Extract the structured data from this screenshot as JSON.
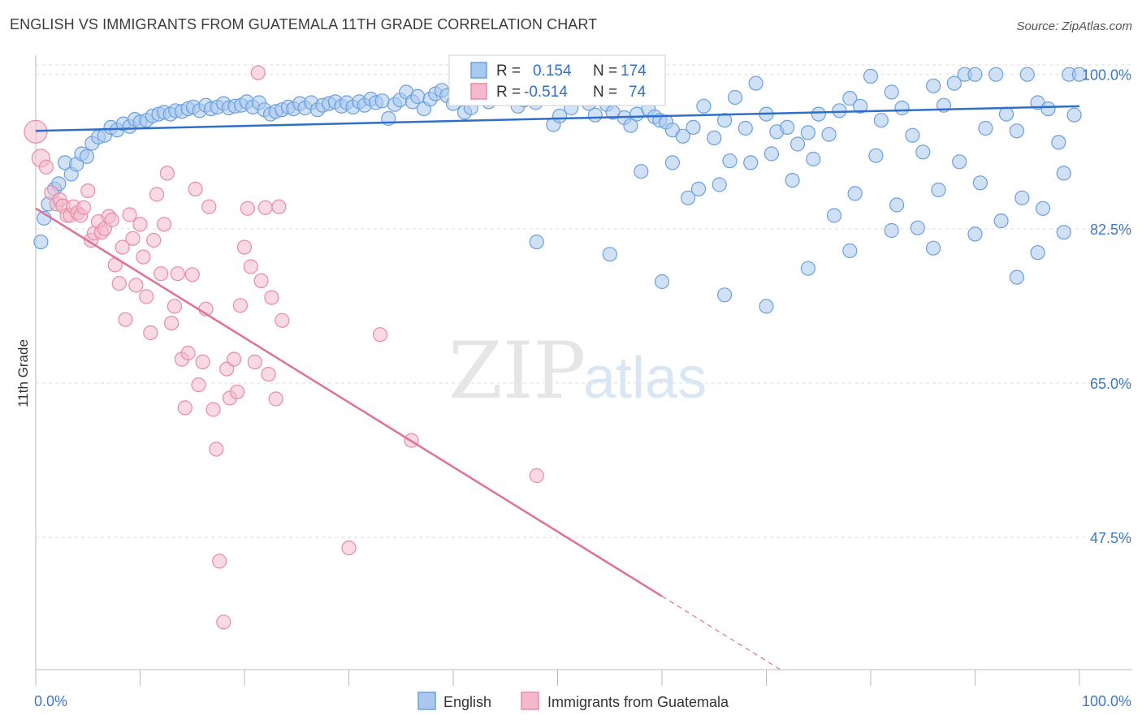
{
  "title": "ENGLISH VS IMMIGRANTS FROM GUATEMALA 11TH GRADE CORRELATION CHART",
  "source": "Source: ZipAtlas.com",
  "watermark": {
    "part1": "ZIP",
    "part2": "atlas"
  },
  "colors": {
    "blue": "#6a9fe0",
    "blue_fill": "#a9c8ef",
    "blue_line": "#2f6fc9",
    "pink": "#e88aa8",
    "pink_fill": "#f4b9cb",
    "pink_line": "#e0709a",
    "label": "#3d78c7",
    "grid": "#dddddd"
  },
  "stats_box": {
    "rows": [
      {
        "r_label": "R =",
        "r_value": "0.154",
        "n_label": "N =",
        "n_value": "174"
      },
      {
        "r_label": "R =",
        "r_value": "-0.514",
        "n_label": "N =",
        "n_value": "74"
      }
    ]
  },
  "legend": {
    "items": [
      "English",
      "Immigrants from Guatemala"
    ]
  },
  "chart_data": {
    "type": "scatter",
    "title": "ENGLISH VS IMMIGRANTS FROM GUATEMALA 11TH GRADE CORRELATION CHART",
    "xlabel": "",
    "ylabel": "11th Grade",
    "xlim": [
      0,
      100
    ],
    "ylim": [
      32.5,
      102
    ],
    "x_tick_labels": [
      "0.0%",
      "100.0%"
    ],
    "y_ticks": [
      47.5,
      65.0,
      82.5,
      100.0
    ],
    "y_tick_labels": [
      "47.5%",
      "65.0%",
      "82.5%",
      "100.0%"
    ],
    "grid": true,
    "legend_position": "bottom-center",
    "series": [
      {
        "name": "English",
        "color": "#6a9fe0",
        "r": 0.154,
        "n": 174,
        "trend": {
          "x": [
            0,
            100
          ],
          "y": [
            93.6,
            96.4
          ],
          "solid_until": 100
        },
        "points": [
          [
            0.5,
            81
          ],
          [
            0.8,
            83.7
          ],
          [
            1.2,
            85.3
          ],
          [
            1.8,
            87
          ],
          [
            2.2,
            87.6
          ],
          [
            2.8,
            90
          ],
          [
            3.4,
            88.7
          ],
          [
            3.9,
            89.8
          ],
          [
            4.4,
            91
          ],
          [
            4.9,
            90.7
          ],
          [
            5.4,
            92.2
          ],
          [
            6,
            92.9
          ],
          [
            6.6,
            93.1
          ],
          [
            7.2,
            94
          ],
          [
            7.8,
            93.7
          ],
          [
            8.4,
            94.4
          ],
          [
            9,
            94.1
          ],
          [
            9.5,
            94.9
          ],
          [
            10,
            94.6
          ],
          [
            10.6,
            94.8
          ],
          [
            11.2,
            95.3
          ],
          [
            11.8,
            95.5
          ],
          [
            12.3,
            95.7
          ],
          [
            12.9,
            95.5
          ],
          [
            13.4,
            95.9
          ],
          [
            14,
            95.8
          ],
          [
            14.6,
            96.1
          ],
          [
            15.1,
            96.3
          ],
          [
            15.7,
            95.9
          ],
          [
            16.3,
            96.5
          ],
          [
            16.8,
            96.1
          ],
          [
            17.4,
            96.3
          ],
          [
            18,
            96.7
          ],
          [
            18.5,
            96.2
          ],
          [
            19.1,
            96.4
          ],
          [
            19.7,
            96.5
          ],
          [
            20.2,
            96.9
          ],
          [
            20.8,
            96.3
          ],
          [
            21.4,
            96.8
          ],
          [
            21.9,
            96
          ],
          [
            22.5,
            95.5
          ],
          [
            23,
            95.8
          ],
          [
            23.6,
            96
          ],
          [
            24.2,
            96.3
          ],
          [
            24.7,
            96.1
          ],
          [
            25.3,
            96.7
          ],
          [
            25.8,
            96.2
          ],
          [
            26.4,
            96.8
          ],
          [
            27,
            96
          ],
          [
            27.5,
            96.5
          ],
          [
            28.1,
            96.7
          ],
          [
            28.7,
            96.9
          ],
          [
            29.3,
            96.4
          ],
          [
            29.8,
            96.8
          ],
          [
            30.4,
            96.3
          ],
          [
            31,
            96.9
          ],
          [
            31.5,
            96.5
          ],
          [
            32.1,
            97.2
          ],
          [
            32.6,
            96.8
          ],
          [
            33.2,
            97
          ],
          [
            33.8,
            95
          ],
          [
            34.4,
            96.6
          ],
          [
            34.9,
            97.1
          ],
          [
            35.5,
            98
          ],
          [
            36.1,
            96.9
          ],
          [
            36.6,
            97.5
          ],
          [
            37.2,
            96.1
          ],
          [
            37.8,
            97.2
          ],
          [
            38.3,
            97.8
          ],
          [
            38.9,
            98.2
          ],
          [
            39.4,
            97.6
          ],
          [
            40,
            96.7
          ],
          [
            40.6,
            98.6
          ],
          [
            41.1,
            95.7
          ],
          [
            41.7,
            96.2
          ],
          [
            42.3,
            97.8
          ],
          [
            42.8,
            98.4
          ],
          [
            43.4,
            96.9
          ],
          [
            44,
            97.3
          ],
          [
            44.5,
            98.9
          ],
          [
            45.1,
            97.5
          ],
          [
            45.7,
            98
          ],
          [
            46.2,
            96.4
          ],
          [
            46.8,
            97.1
          ],
          [
            47.4,
            98.3
          ],
          [
            47.9,
            96.8
          ],
          [
            48.5,
            98.1
          ],
          [
            49.1,
            97.9
          ],
          [
            49.6,
            94.3
          ],
          [
            50.2,
            95.3
          ],
          [
            50.8,
            97.5
          ],
          [
            51.3,
            96.2
          ],
          [
            51.9,
            99.6
          ],
          [
            52.5,
            98.4
          ],
          [
            53,
            96.7
          ],
          [
            53.6,
            95.4
          ],
          [
            54.2,
            97.7
          ],
          [
            54.7,
            96.6
          ],
          [
            55.3,
            95.7
          ],
          [
            55.9,
            99.7
          ],
          [
            56.4,
            95.1
          ],
          [
            57,
            94.2
          ],
          [
            57.6,
            95.5
          ],
          [
            58.1,
            97.9
          ],
          [
            58.7,
            96.1
          ],
          [
            59.3,
            95.2
          ],
          [
            59.8,
            94.8
          ],
          [
            60.4,
            94.6
          ],
          [
            61,
            93.7
          ],
          [
            62,
            93
          ],
          [
            63,
            94
          ],
          [
            64,
            96.4
          ],
          [
            65,
            92.8
          ],
          [
            66,
            94.8
          ],
          [
            67,
            97.4
          ],
          [
            68,
            93.9
          ],
          [
            69,
            99
          ],
          [
            70,
            95.5
          ],
          [
            71,
            93.5
          ],
          [
            72,
            94
          ],
          [
            73,
            92.1
          ],
          [
            74,
            93.4
          ],
          [
            75,
            95.5
          ],
          [
            76,
            93.2
          ],
          [
            77,
            95.9
          ],
          [
            78,
            97.3
          ],
          [
            79,
            96.4
          ],
          [
            80,
            99.8
          ],
          [
            81,
            94.8
          ],
          [
            82,
            98
          ],
          [
            83,
            96.2
          ],
          [
            84,
            93.1
          ],
          [
            85,
            91.2
          ],
          [
            86,
            98.7
          ],
          [
            87,
            96.5
          ],
          [
            88,
            99
          ],
          [
            89,
            100
          ],
          [
            90,
            100
          ],
          [
            91,
            93.9
          ],
          [
            92,
            100
          ],
          [
            93,
            95.5
          ],
          [
            94,
            93.6
          ],
          [
            95,
            100
          ],
          [
            96,
            96.8
          ],
          [
            97,
            96.1
          ],
          [
            98,
            92.3
          ],
          [
            99,
            100
          ],
          [
            100,
            100
          ],
          [
            58,
            89
          ],
          [
            61,
            90
          ],
          [
            62.5,
            86
          ],
          [
            63.5,
            87
          ],
          [
            65.5,
            87.5
          ],
          [
            66.5,
            90.2
          ],
          [
            68.5,
            90
          ],
          [
            70.5,
            91
          ],
          [
            72.5,
            88
          ],
          [
            74.5,
            90.4
          ],
          [
            76.5,
            84
          ],
          [
            78.5,
            86.5
          ],
          [
            80.5,
            90.8
          ],
          [
            82.5,
            85.2
          ],
          [
            84.5,
            82.6
          ],
          [
            86.5,
            86.9
          ],
          [
            88.5,
            90.1
          ],
          [
            90.5,
            87.7
          ],
          [
            92.5,
            83.4
          ],
          [
            94.5,
            86
          ],
          [
            96.5,
            84.8
          ],
          [
            98.5,
            82.1
          ],
          [
            48,
            81
          ],
          [
            55,
            79.6
          ],
          [
            60,
            76.5
          ],
          [
            66,
            75
          ],
          [
            70,
            73.7
          ],
          [
            74,
            78
          ],
          [
            78,
            80
          ],
          [
            82,
            82.3
          ],
          [
            86,
            80.3
          ],
          [
            90,
            81.9
          ],
          [
            94,
            77
          ],
          [
            96,
            79.8
          ],
          [
            98.5,
            88.8
          ],
          [
            99.5,
            95.4
          ]
        ]
      },
      {
        "name": "Immigrants from Guatemala",
        "color": "#e88aa8",
        "r": -0.514,
        "n": 74,
        "trend": {
          "x": [
            0,
            100
          ],
          "y": [
            84.8,
            11.5
          ],
          "solid_until": 60
        },
        "points": [
          [
            0,
            93.5
          ],
          [
            0.5,
            90.5
          ],
          [
            1,
            89.5
          ],
          [
            1.5,
            86.6
          ],
          [
            2,
            85.3
          ],
          [
            2.3,
            85.8
          ],
          [
            2.6,
            85.1
          ],
          [
            3,
            84
          ],
          [
            3.3,
            84
          ],
          [
            3.6,
            85
          ],
          [
            4,
            84.3
          ],
          [
            4.3,
            84
          ],
          [
            4.6,
            84.9
          ],
          [
            5,
            86.8
          ],
          [
            5.3,
            81.2
          ],
          [
            5.6,
            82
          ],
          [
            6,
            83.3
          ],
          [
            6.3,
            82.1
          ],
          [
            6.6,
            82.5
          ],
          [
            7,
            83.9
          ],
          [
            7.3,
            83.5
          ],
          [
            7.6,
            78.4
          ],
          [
            8,
            76.3
          ],
          [
            8.3,
            80.4
          ],
          [
            8.6,
            72.2
          ],
          [
            9,
            84.1
          ],
          [
            9.3,
            81.4
          ],
          [
            9.6,
            76.1
          ],
          [
            10,
            83
          ],
          [
            10.3,
            79.3
          ],
          [
            10.6,
            74.8
          ],
          [
            11,
            70.7
          ],
          [
            11.3,
            81.2
          ],
          [
            11.6,
            86.4
          ],
          [
            12,
            77.4
          ],
          [
            12.3,
            83
          ],
          [
            12.6,
            88.8
          ],
          [
            13,
            71.8
          ],
          [
            13.3,
            73.7
          ],
          [
            13.6,
            77.4
          ],
          [
            14,
            67.7
          ],
          [
            14.3,
            62.2
          ],
          [
            14.6,
            68.4
          ],
          [
            15,
            77.3
          ],
          [
            15.3,
            87
          ],
          [
            15.6,
            64.8
          ],
          [
            16,
            67.4
          ],
          [
            16.3,
            73.4
          ],
          [
            16.6,
            85
          ],
          [
            17,
            62
          ],
          [
            17.3,
            57.5
          ],
          [
            17.6,
            44.8
          ],
          [
            18,
            37.9
          ],
          [
            18.3,
            66.6
          ],
          [
            18.6,
            63.3
          ],
          [
            19,
            67.7
          ],
          [
            19.3,
            64
          ],
          [
            19.6,
            73.8
          ],
          [
            20,
            80.4
          ],
          [
            20.3,
            84.8
          ],
          [
            20.6,
            78.2
          ],
          [
            21,
            67.4
          ],
          [
            21.3,
            100.2
          ],
          [
            21.6,
            76.6
          ],
          [
            22,
            84.9
          ],
          [
            22.3,
            66
          ],
          [
            22.6,
            74.7
          ],
          [
            23,
            63.2
          ],
          [
            23.3,
            85
          ],
          [
            23.6,
            72.1
          ],
          [
            30,
            46.3
          ],
          [
            33,
            70.5
          ],
          [
            36,
            58.5
          ],
          [
            48,
            54.5
          ]
        ]
      }
    ]
  }
}
